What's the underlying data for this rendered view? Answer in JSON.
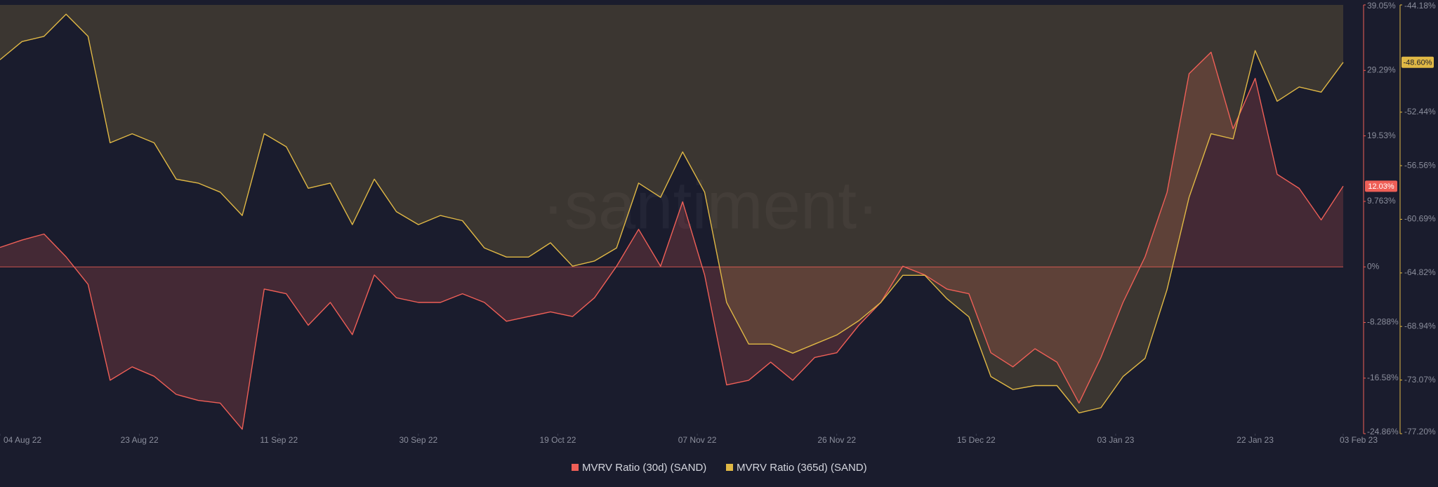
{
  "chart_data": {
    "type": "line",
    "watermark": "·santiment·",
    "legend": "bottom",
    "x": [
      "2022-08-04",
      "2022-08-07",
      "2022-08-10",
      "2022-08-13",
      "2022-08-16",
      "2022-08-19",
      "2022-08-22",
      "2022-08-25",
      "2022-08-28",
      "2022-08-31",
      "2022-09-03",
      "2022-09-06",
      "2022-09-09",
      "2022-09-12",
      "2022-09-15",
      "2022-09-18",
      "2022-09-21",
      "2022-09-24",
      "2022-09-27",
      "2022-09-30",
      "2022-10-03",
      "2022-10-06",
      "2022-10-09",
      "2022-10-12",
      "2022-10-15",
      "2022-10-18",
      "2022-10-21",
      "2022-10-24",
      "2022-10-27",
      "2022-10-30",
      "2022-11-02",
      "2022-11-05",
      "2022-11-08",
      "2022-11-11",
      "2022-11-14",
      "2022-11-17",
      "2022-11-20",
      "2022-11-23",
      "2022-11-26",
      "2022-11-29",
      "2022-12-02",
      "2022-12-05",
      "2022-12-08",
      "2022-12-11",
      "2022-12-14",
      "2022-12-17",
      "2022-12-20",
      "2022-12-23",
      "2022-12-26",
      "2022-12-29",
      "2023-01-01",
      "2023-01-04",
      "2023-01-07",
      "2023-01-10",
      "2023-01-13",
      "2023-01-16",
      "2023-01-19",
      "2023-01-22",
      "2023-01-25",
      "2023-01-28",
      "2023-01-31",
      "2023-02-03"
    ],
    "xlim": [
      "2022-08-04",
      "2023-02-03"
    ],
    "xticks": [
      {
        "value": "2022-08-04",
        "label": "04 Aug 22"
      },
      {
        "value": "2022-08-23",
        "label": "23 Aug 22"
      },
      {
        "value": "2022-09-11",
        "label": "11 Sep 22"
      },
      {
        "value": "2022-09-30",
        "label": "30 Sep 22"
      },
      {
        "value": "2022-10-19",
        "label": "19 Oct 22"
      },
      {
        "value": "2022-11-07",
        "label": "07 Nov 22"
      },
      {
        "value": "2022-11-26",
        "label": "26 Nov 22"
      },
      {
        "value": "2022-12-15",
        "label": "15 Dec 22"
      },
      {
        "value": "2023-01-03",
        "label": "03 Jan 23"
      },
      {
        "value": "2023-01-22",
        "label": "22 Jan 23"
      },
      {
        "value": "2023-02-03",
        "label": "03 Feb 23"
      }
    ],
    "ylim": [
      -24.86,
      39.05
    ],
    "yticks": [
      {
        "value": 39.05,
        "label": "39.05%"
      },
      {
        "value": 29.29,
        "label": "29.29%"
      },
      {
        "value": 19.53,
        "label": "19.53%"
      },
      {
        "value": 9.763,
        "label": "9.763%"
      },
      {
        "value": 0,
        "label": "0%"
      },
      {
        "value": -8.288,
        "label": "-8.288%"
      },
      {
        "value": -16.58,
        "label": "-16.58%"
      },
      {
        "value": -24.86,
        "label": "-24.86%"
      }
    ],
    "y2lim": [
      -77.2,
      -44.18
    ],
    "y2ticks": [
      {
        "value": -44.18,
        "label": "-44.18%"
      },
      {
        "value": -52.44,
        "label": "-52.44%"
      },
      {
        "value": -56.56,
        "label": "-56.56%"
      },
      {
        "value": -60.69,
        "label": "-60.69%"
      },
      {
        "value": -64.82,
        "label": "-64.82%"
      },
      {
        "value": -68.94,
        "label": "-68.94%"
      },
      {
        "value": -73.07,
        "label": "-73.07%"
      },
      {
        "value": -77.2,
        "label": "-77.20%"
      }
    ],
    "series": [
      {
        "name": "MVRV Ratio (30d) (SAND)",
        "color": "#ef5f57",
        "fill": "zero",
        "last_label": "12.03%",
        "values": [
          2.9,
          4.0,
          4.9,
          1.5,
          -2.6,
          -16.9,
          -14.9,
          -16.3,
          -19.0,
          -19.9,
          -20.3,
          -24.2,
          -3.3,
          -4.0,
          -8.7,
          -5.3,
          -10.1,
          -1.2,
          -4.6,
          -5.3,
          -5.3,
          -4.0,
          -5.3,
          -8.1,
          -7.4,
          -6.7,
          -7.4,
          -4.6,
          0.1,
          5.6,
          0.1,
          9.7,
          -1.2,
          -17.6,
          -16.9,
          -14.2,
          -16.9,
          -13.5,
          -12.8,
          -8.7,
          -5.3,
          0.1,
          -1.2,
          -3.3,
          -4.0,
          -12.8,
          -14.9,
          -12.2,
          -14.2,
          -20.3,
          -13.5,
          -5.3,
          1.5,
          11.1,
          28.8,
          32,
          20.6,
          28.1,
          13.8,
          11.7,
          7.0,
          12.03
        ]
      },
      {
        "name": "MVRV Ratio (365d) (SAND)",
        "color": "#e0b845",
        "fill": "top",
        "axis": "y2",
        "last_label": "-48.60%",
        "values": [
          -48.4,
          -47.0,
          -46.6,
          -44.9,
          -46.6,
          -54.8,
          -54.1,
          -54.8,
          -57.6,
          -57.9,
          -58.6,
          -60.4,
          -54.1,
          -55.1,
          -58.3,
          -57.9,
          -61.1,
          -57.6,
          -60.1,
          -61.1,
          -60.4,
          -60.8,
          -62.9,
          -63.6,
          -63.6,
          -62.5,
          -64.3,
          -63.9,
          -62.9,
          -57.9,
          -59.0,
          -55.5,
          -58.6,
          -67.1,
          -70.3,
          -70.3,
          -71.0,
          -70.3,
          -69.6,
          -68.5,
          -67.1,
          -65.0,
          -65.0,
          -66.8,
          -68.2,
          -72.8,
          -73.8,
          -73.5,
          -73.5,
          -75.6,
          -75.2,
          -72.8,
          -71.4,
          -66.1,
          -59.0,
          -54.1,
          -54.5,
          -47.7,
          -51.6,
          -50.5,
          -50.9,
          -48.6
        ]
      }
    ]
  }
}
